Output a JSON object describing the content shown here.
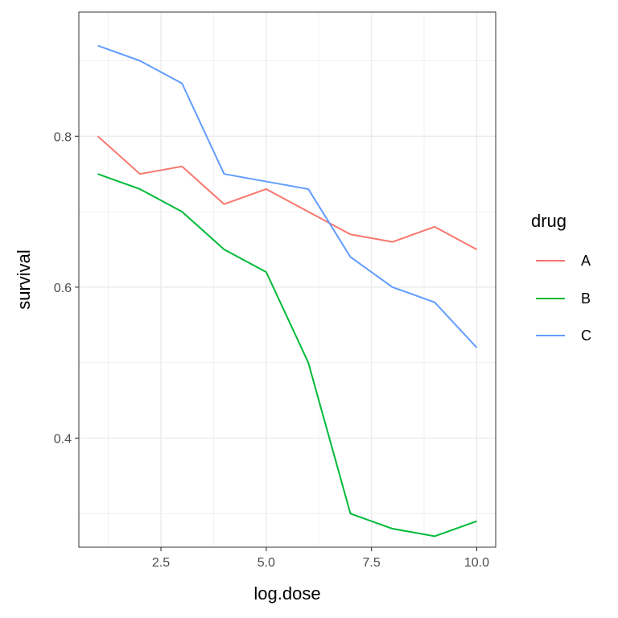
{
  "chart_data": {
    "type": "line",
    "xlabel": "log.dose",
    "ylabel": "survival",
    "x": [
      1,
      2,
      3,
      4,
      5,
      6,
      7,
      8,
      9,
      10
    ],
    "xlim": [
      0.55,
      10.45
    ],
    "ylim": [
      0.2555,
      0.9645
    ],
    "x_ticks": [
      2.5,
      5.0,
      7.5,
      10.0
    ],
    "x_tick_labels": [
      "2.5",
      "5.0",
      "7.5",
      "10.0"
    ],
    "y_ticks": [
      0.4,
      0.6,
      0.8
    ],
    "y_tick_labels": [
      "0.4",
      "0.6",
      "0.8"
    ],
    "x_minor_ticks": [
      1.25,
      3.75,
      6.25,
      8.75
    ],
    "y_minor_ticks": [
      0.3,
      0.5,
      0.7,
      0.9
    ],
    "grid": true,
    "legend": {
      "title": "drug",
      "position": "right"
    },
    "series": [
      {
        "name": "A",
        "color": "#F8766D",
        "values": [
          0.8,
          0.75,
          0.76,
          0.71,
          0.73,
          0.7,
          0.67,
          0.66,
          0.68,
          0.65
        ]
      },
      {
        "name": "B",
        "color": "#00BA38",
        "values": [
          0.75,
          0.73,
          0.7,
          0.65,
          0.62,
          0.5,
          0.3,
          0.28,
          0.27,
          0.29
        ]
      },
      {
        "name": "C",
        "color": "#619CFF",
        "values": [
          0.92,
          0.9,
          0.87,
          0.75,
          0.74,
          0.73,
          0.64,
          0.6,
          0.58,
          0.52
        ]
      }
    ]
  }
}
